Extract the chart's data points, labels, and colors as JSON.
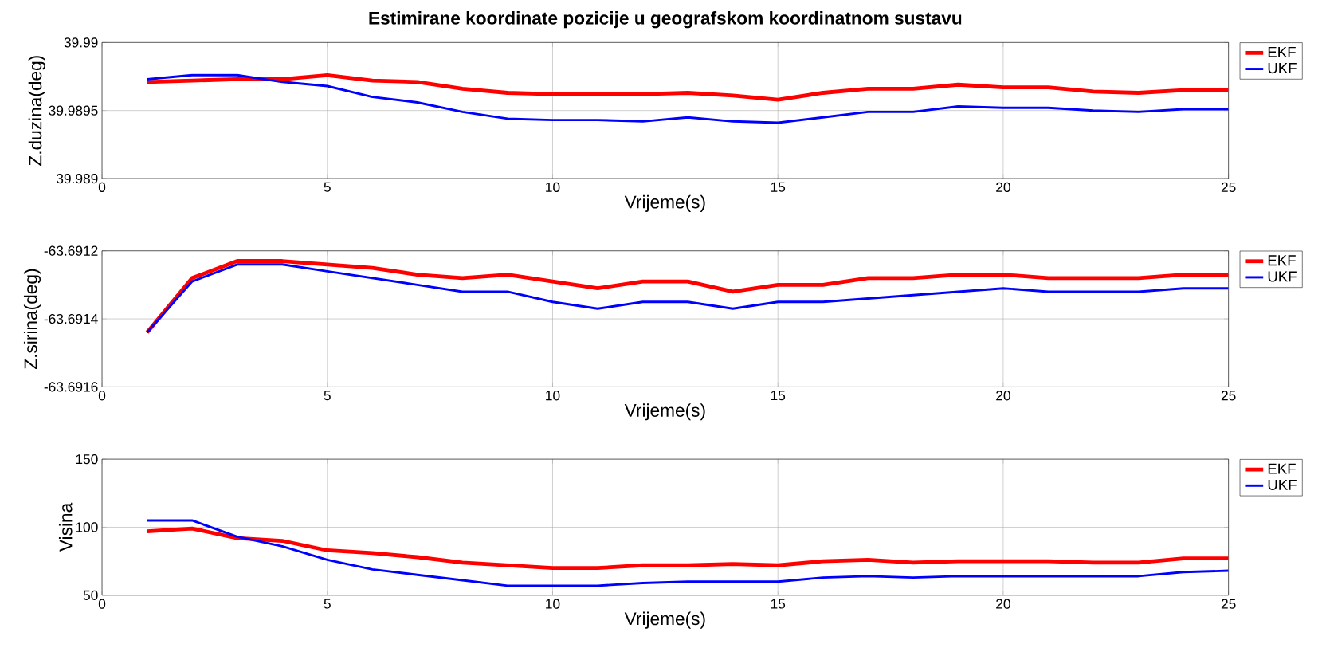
{
  "chart_data": [
    {
      "type": "line",
      "title": "Estimirane koordinate pozicije u geografskom koordinatnom sustavu",
      "xlabel": "Vrijeme(s)",
      "ylabel": "Z.duzina(deg)",
      "x": [
        1,
        2,
        3,
        4,
        5,
        6,
        7,
        8,
        9,
        10,
        11,
        12,
        13,
        14,
        15,
        16,
        17,
        18,
        19,
        20,
        21,
        22,
        23,
        24,
        25
      ],
      "series": [
        {
          "name": "EKF",
          "color": "#ff0000",
          "values": [
            39.98971,
            39.98972,
            39.98973,
            39.98973,
            39.98976,
            39.98972,
            39.98971,
            39.98966,
            39.98963,
            39.98962,
            39.98962,
            39.98962,
            39.98963,
            39.98961,
            39.98958,
            39.98963,
            39.98966,
            39.98966,
            39.98969,
            39.98967,
            39.98967,
            39.98964,
            39.98963,
            39.98965,
            39.98965
          ]
        },
        {
          "name": "UKF",
          "color": "#0000ff",
          "values": [
            39.98973,
            39.98976,
            39.98976,
            39.98971,
            39.98968,
            39.9896,
            39.98956,
            39.98949,
            39.98944,
            39.98943,
            39.98943,
            39.98942,
            39.98945,
            39.98942,
            39.98941,
            39.98945,
            39.98949,
            39.98949,
            39.98953,
            39.98952,
            39.98952,
            39.9895,
            39.98949,
            39.98951,
            39.98951
          ]
        }
      ],
      "xlim": [
        0,
        25
      ],
      "xticks": [
        0,
        5,
        10,
        15,
        20,
        25
      ],
      "ylim": [
        39.989,
        39.99
      ],
      "yticks": [
        39.989,
        39.9895,
        39.99
      ],
      "grid": true,
      "legend": "top right"
    },
    {
      "type": "line",
      "xlabel": "Vrijeme(s)",
      "ylabel": "Z.sirina(deg)",
      "x": [
        1,
        2,
        3,
        4,
        5,
        6,
        7,
        8,
        9,
        10,
        11,
        12,
        13,
        14,
        15,
        16,
        17,
        18,
        19,
        20,
        21,
        22,
        23,
        24,
        25
      ],
      "series": [
        {
          "name": "EKF",
          "color": "#ff0000",
          "values": [
            -63.69144,
            -63.69128,
            -63.69123,
            -63.69123,
            -63.69124,
            -63.69125,
            -63.69127,
            -63.69128,
            -63.69127,
            -63.69129,
            -63.69131,
            -63.69129,
            -63.69129,
            -63.69132,
            -63.6913,
            -63.6913,
            -63.69128,
            -63.69128,
            -63.69127,
            -63.69127,
            -63.69128,
            -63.69128,
            -63.69128,
            -63.69127,
            -63.69127
          ]
        },
        {
          "name": "UKF",
          "color": "#0000ff",
          "values": [
            -63.69144,
            -63.69129,
            -63.69124,
            -63.69124,
            -63.69126,
            -63.69128,
            -63.6913,
            -63.69132,
            -63.69132,
            -63.69135,
            -63.69137,
            -63.69135,
            -63.69135,
            -63.69137,
            -63.69135,
            -63.69135,
            -63.69134,
            -63.69133,
            -63.69132,
            -63.69131,
            -63.69132,
            -63.69132,
            -63.69132,
            -63.69131,
            -63.69131
          ]
        }
      ],
      "xlim": [
        0,
        25
      ],
      "xticks": [
        0,
        5,
        10,
        15,
        20,
        25
      ],
      "ylim": [
        -63.6916,
        -63.6912
      ],
      "yticks": [
        -63.6916,
        -63.6914,
        -63.6912
      ],
      "grid": true,
      "legend": "top right"
    },
    {
      "type": "line",
      "xlabel": "Vrijeme(s)",
      "ylabel": "Visina",
      "x": [
        1,
        2,
        3,
        4,
        5,
        6,
        7,
        8,
        9,
        10,
        11,
        12,
        13,
        14,
        15,
        16,
        17,
        18,
        19,
        20,
        21,
        22,
        23,
        24,
        25
      ],
      "series": [
        {
          "name": "EKF",
          "color": "#ff0000",
          "values": [
            97,
            99,
            92,
            90,
            83,
            81,
            78,
            74,
            72,
            70,
            70,
            72,
            72,
            73,
            72,
            75,
            76,
            74,
            75,
            75,
            75,
            74,
            74,
            77,
            77
          ]
        },
        {
          "name": "UKF",
          "color": "#0000ff",
          "values": [
            105,
            105,
            93,
            86,
            76,
            69,
            65,
            61,
            57,
            57,
            57,
            59,
            60,
            60,
            60,
            63,
            64,
            63,
            64,
            64,
            64,
            64,
            64,
            67,
            68
          ]
        }
      ],
      "xlim": [
        0,
        25
      ],
      "xticks": [
        0,
        5,
        10,
        15,
        20,
        25
      ],
      "ylim": [
        50,
        150
      ],
      "yticks": [
        50,
        100,
        150
      ],
      "grid": true,
      "legend": "top right"
    }
  ]
}
